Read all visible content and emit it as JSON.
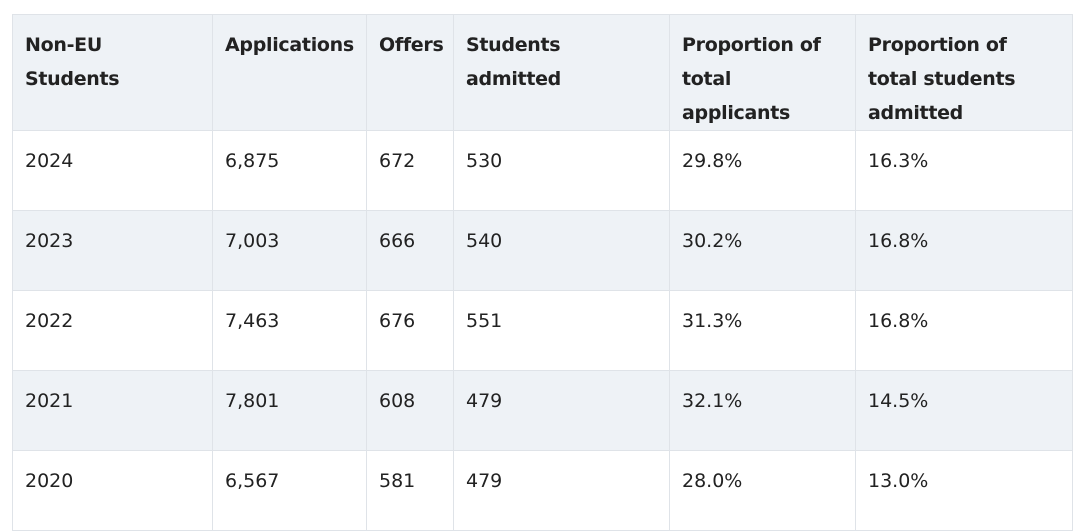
{
  "table": {
    "headers": [
      "Non-EU Students",
      "Applications",
      "Offers",
      "Students admitted",
      "Proportion of total applicants",
      "Proportion of total students admitted"
    ],
    "rows": [
      [
        "2024",
        "6,875",
        "672",
        "530",
        "29.8%",
        "16.3%"
      ],
      [
        "2023",
        "7,003",
        "666",
        "540",
        "30.2%",
        "16.8%"
      ],
      [
        "2022",
        "7,463",
        "676",
        "551",
        "31.3%",
        "16.8%"
      ],
      [
        "2021",
        "7,801",
        "608",
        "479",
        "32.1%",
        "14.5%"
      ],
      [
        "2020",
        "6,567",
        "581",
        "479",
        "28.0%",
        "13.0%"
      ]
    ]
  },
  "colors": {
    "header_bg": "#eef2f6",
    "stripe_bg": "#eef2f6",
    "border": "#dfe3e8",
    "text": "#222222"
  }
}
